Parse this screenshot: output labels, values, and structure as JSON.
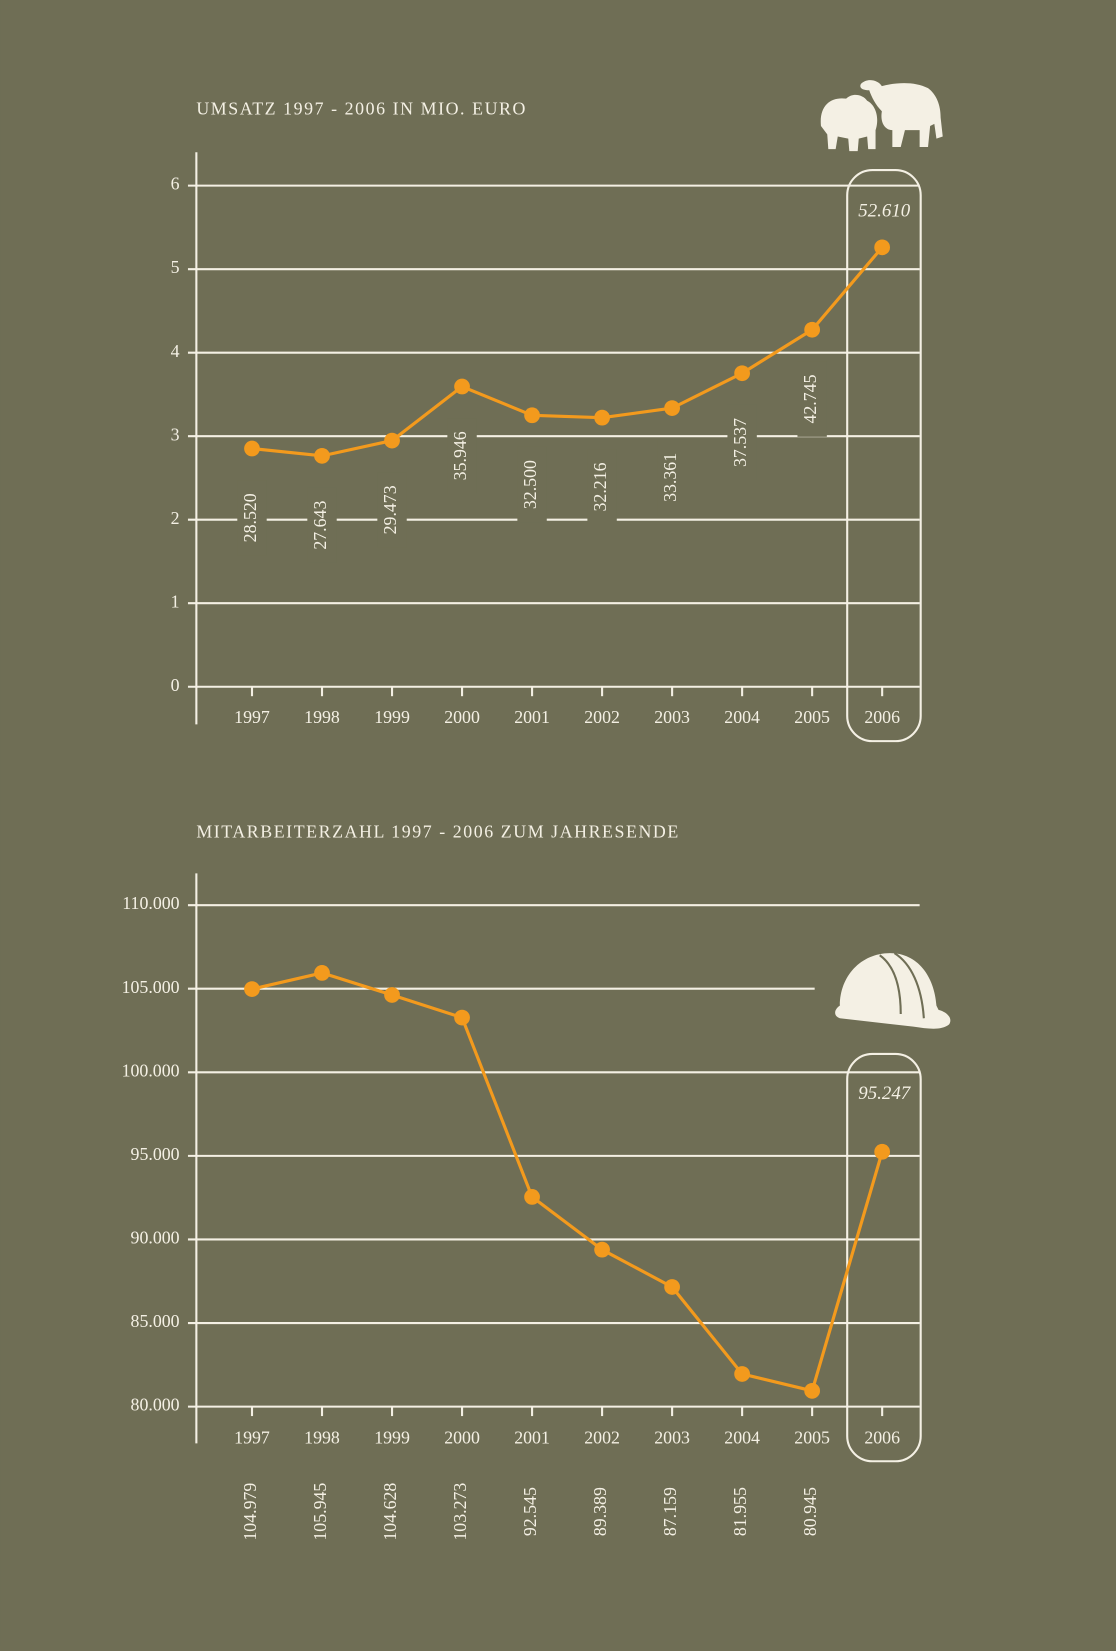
{
  "chart_data": [
    {
      "type": "line",
      "title": "UMSATZ 1997 - 2006 IN MIO. EURO",
      "categories": [
        "1997",
        "1998",
        "1999",
        "2000",
        "2001",
        "2002",
        "2003",
        "2004",
        "2005",
        "2006"
      ],
      "values": [
        2.852,
        2.7643,
        2.9473,
        3.5946,
        3.25,
        3.2216,
        3.3361,
        3.7537,
        4.2745,
        5.261
      ],
      "value_labels": [
        "28.520",
        "27.643",
        "29.473",
        "35.946",
        "32.500",
        "32.216",
        "33.361",
        "37.537",
        "42.745",
        "52.610"
      ],
      "color": "#f39a1d",
      "ylim": [
        -0.45,
        6.4
      ],
      "yticks": [
        0,
        1,
        2,
        3,
        4,
        5,
        6
      ],
      "grid": true
    },
    {
      "type": "line",
      "title": "MITARBEITERZAHL 1997 - 2006 ZUM JAHRESENDE",
      "categories": [
        "1997",
        "1998",
        "1999",
        "2000",
        "2001",
        "2002",
        "2003",
        "2004",
        "2005",
        "2006"
      ],
      "values": [
        104979,
        105945,
        104628,
        103273,
        92545,
        89389,
        87159,
        81955,
        80945,
        95247
      ],
      "value_labels": [
        "104.979",
        "105.945",
        "104.628",
        "103.273",
        "92.545",
        "89.389",
        "87.159",
        "81.955",
        "80.945",
        "95.247"
      ],
      "color": "#f39a1d",
      "ylim": [
        77800,
        111900
      ],
      "yticks": [
        {
          "value": 80000,
          "label": "80.000"
        },
        {
          "value": 85000,
          "label": "85.000"
        },
        {
          "value": 90000,
          "label": "90.000"
        },
        {
          "value": 95000,
          "label": "95.000"
        },
        {
          "value": 100000,
          "label": "100.000"
        },
        {
          "value": 105000,
          "label": "105.000"
        },
        {
          "value": 110000,
          "label": "110.000"
        }
      ],
      "grid": true
    }
  ]
}
